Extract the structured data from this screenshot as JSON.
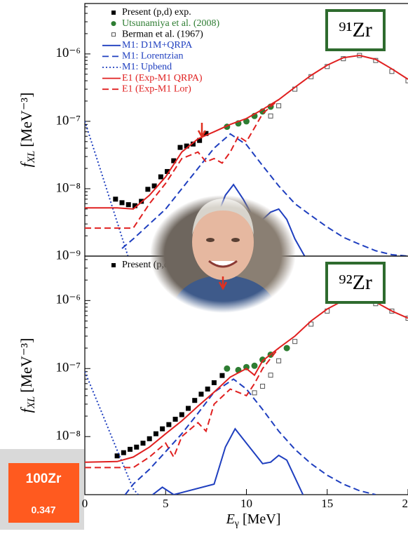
{
  "chart_data": [
    {
      "type": "line",
      "annotation": "⁹¹Zr",
      "legend": "upper left",
      "ylog": true,
      "ylabel": {
        "symbol": "f",
        "subscript": "XL",
        "unit": "[MeV⁻³]"
      },
      "xlim": [
        0,
        20
      ],
      "ylim": [
        1e-09,
        5.6e-06
      ],
      "yticks": [
        {
          "value": 1e-09,
          "label": "10⁻⁹"
        },
        {
          "value": 1e-08,
          "label": "10⁻⁸"
        },
        {
          "value": 1e-07,
          "label": "10⁻⁷"
        },
        {
          "value": 1e-06,
          "label": "10⁻⁶"
        }
      ],
      "series": [
        {
          "name": "Present (p,d) exp.",
          "color": "#000000",
          "marker": "square",
          "x": [
            1.9,
            2.3,
            2.7,
            3.1,
            3.5,
            3.9,
            4.3,
            4.7,
            5.1,
            5.5,
            5.9,
            6.3,
            6.7,
            7.1,
            7.5
          ],
          "values": [
            7e-09,
            6.2e-09,
            5.8e-09,
            5.6e-09,
            6.5e-09,
            9.8e-09,
            1.1e-08,
            1.5e-08,
            1.8e-08,
            2.6e-08,
            4.1e-08,
            4.3e-08,
            4.6e-08,
            5.2e-08,
            6.6e-08
          ]
        },
        {
          "name": "Utsunamiya et al. (2008)",
          "color": "#2e7d32",
          "marker": "circle",
          "x": [
            8.8,
            9.5,
            10.0,
            10.5,
            11.0,
            11.5
          ],
          "values": [
            8.3e-08,
            9.3e-08,
            1e-07,
            1.2e-07,
            1.4e-07,
            1.65e-07
          ]
        },
        {
          "name": "Berman et al. (1967)",
          "color": "#555555",
          "marker": "open-square",
          "x": [
            11.5,
            12,
            13,
            14,
            15,
            16,
            17,
            18,
            19,
            20
          ],
          "values": [
            1.2e-07,
            1.7e-07,
            3e-07,
            4.6e-07,
            6.5e-07,
            8.5e-07,
            9.5e-07,
            8e-07,
            5.5e-07,
            4e-07
          ]
        },
        {
          "name": "M1: D1M+QRPA",
          "color": "#1f3fbf",
          "dash": "solid",
          "x": [
            7,
            8,
            8.7,
            9.2,
            9.8,
            10.5,
            11,
            11.5,
            12,
            12.5,
            13,
            13.6
          ],
          "values": [
            1e-09,
            3e-09,
            8e-09,
            1.15e-08,
            7e-09,
            3.5e-09,
            3.5e-09,
            4.5e-09,
            5e-09,
            3.5e-09,
            1.8e-09,
            1e-09
          ]
        },
        {
          "name": "M1: Lorentzian",
          "color": "#1f3fbf",
          "dash": "dashed",
          "x": [
            2.3,
            3,
            4,
            5,
            6,
            7,
            8,
            9,
            10,
            11,
            12,
            13,
            14,
            15,
            16,
            17,
            18,
            19,
            20
          ],
          "values": [
            1.3e-09,
            1.8e-09,
            3e-09,
            5e-09,
            1e-08,
            2e-08,
            4e-08,
            6.5e-08,
            4.5e-08,
            2.2e-08,
            1.1e-08,
            6e-09,
            4e-09,
            2.7e-09,
            1.9e-09,
            1.5e-09,
            1.2e-09,
            1.05e-09,
            1e-09
          ]
        },
        {
          "name": "M1: Upbend",
          "color": "#1f3fbf",
          "dash": "dotted",
          "x": [
            0,
            1,
            2,
            2.67
          ],
          "values": [
            1e-07,
            1.8e-08,
            3.2e-09,
            1e-09
          ]
        },
        {
          "name": "E1 (Exp-M1 QRPA)",
          "color": "#e02020",
          "dash": "solid",
          "x": [
            0,
            2,
            3,
            4,
            5,
            6,
            7,
            8,
            9,
            10,
            11,
            12,
            13,
            14,
            15,
            16,
            17,
            18,
            19,
            20
          ],
          "values": [
            5.2e-09,
            5.2e-09,
            5e-09,
            8e-09,
            1.5e-08,
            3.5e-08,
            5.5e-08,
            7e-08,
            9e-08,
            1.1e-07,
            1.5e-07,
            2.1e-07,
            3.2e-07,
            4.8e-07,
            6.8e-07,
            8.8e-07,
            9.5e-07,
            8.3e-07,
            6e-07,
            4.2e-07
          ]
        },
        {
          "name": "E1 (Exp-M1 Lor)",
          "color": "#e02020",
          "dash": "dashed",
          "x": [
            0,
            3,
            4,
            5,
            6,
            7,
            7.5,
            8,
            8.5,
            9,
            9.5,
            10,
            10.5,
            11,
            12
          ],
          "values": [
            2.6e-09,
            2.6e-09,
            6e-09,
            1.2e-08,
            2.8e-08,
            3.5e-08,
            2.5e-08,
            2.8e-08,
            2.4e-08,
            3.5e-08,
            6e-08,
            5e-08,
            8e-08,
            1.3e-07,
            2.1e-07
          ]
        }
      ]
    },
    {
      "type": "line",
      "annotation": "⁹²Zr",
      "legend": "upper left",
      "ylog": true,
      "ylabel": {
        "symbol": "f",
        "subscript": "XL",
        "unit": "[MeV⁻³]"
      },
      "xlabel": {
        "symbol": "E",
        "subscript": "γ",
        "unit": "[MeV]"
      },
      "xlim": [
        0,
        20
      ],
      "xticks": [
        0,
        5,
        10,
        15,
        20
      ],
      "ylim": [
        1.4e-09,
        4.5e-06
      ],
      "yticks": [
        {
          "value": 1e-08,
          "label": "10⁻⁸"
        },
        {
          "value": 1e-07,
          "label": "10⁻⁷"
        },
        {
          "value": 1e-06,
          "label": "10⁻⁶"
        }
      ],
      "series": [
        {
          "name": "Present (p,d) exp.",
          "color": "#000000",
          "marker": "square",
          "x": [
            2,
            2.4,
            2.8,
            3.2,
            3.6,
            4,
            4.4,
            4.8,
            5.2,
            5.6,
            6,
            6.4,
            6.8,
            7.2,
            7.6,
            8,
            8.5
          ],
          "values": [
            5.2e-09,
            5.8e-09,
            6.5e-09,
            7e-09,
            8e-09,
            9.3e-09,
            1.1e-08,
            1.3e-08,
            1.5e-08,
            1.8e-08,
            2.1e-08,
            2.6e-08,
            3.4e-08,
            4.2e-08,
            5e-08,
            6.2e-08,
            7.9e-08
          ]
        },
        {
          "color": "#2e7d32",
          "marker": "circle",
          "x": [
            8.8,
            9.5,
            10,
            10.5,
            11,
            11.5,
            12.5
          ],
          "values": [
            1e-07,
            9.5e-08,
            1.05e-07,
            1.1e-07,
            1.35e-07,
            1.6e-07,
            2e-07
          ]
        },
        {
          "color": "#555555",
          "marker": "open-square",
          "x": [
            10.5,
            11,
            11.5,
            12,
            13,
            14,
            15,
            16,
            17,
            18,
            19,
            20
          ],
          "values": [
            4.4e-08,
            5.5e-08,
            8e-08,
            1.3e-07,
            2.5e-07,
            4.5e-07,
            7e-07,
            1e-06,
            1.1e-06,
            9e-07,
            7e-07,
            5.5e-07
          ]
        },
        {
          "color": "#1f3fbf",
          "dash": "solid",
          "x": [
            4.2,
            4.8,
            5.5,
            8,
            8.7,
            9.3,
            10,
            11,
            11.5,
            12,
            12.5,
            13,
            13.5
          ],
          "values": [
            1.4e-09,
            1.8e-09,
            1.4e-09,
            2e-09,
            7e-09,
            1.3e-08,
            8e-09,
            4e-09,
            4.2e-09,
            5.3e-09,
            4.5e-09,
            2.5e-09,
            1.4e-09
          ]
        },
        {
          "color": "#1f3fbf",
          "dash": "dashed",
          "x": [
            2.5,
            3,
            4,
            5,
            6,
            7,
            8,
            9.2,
            10,
            11,
            12,
            13,
            14,
            15,
            16,
            17,
            18
          ],
          "values": [
            1.4e-09,
            2e-09,
            3.3e-09,
            6e-09,
            1.1e-08,
            2.2e-08,
            4.5e-08,
            7e-08,
            5e-08,
            2.5e-08,
            1.2e-08,
            6.5e-09,
            4e-09,
            2.7e-09,
            2e-09,
            1.6e-09,
            1.4e-09
          ]
        },
        {
          "color": "#1f3fbf",
          "dash": "dotted",
          "x": [
            0,
            1,
            2,
            3,
            3.3
          ],
          "values": [
            9e-08,
            2.4e-08,
            6.3e-09,
            1.7e-09,
            1.4e-09
          ]
        },
        {
          "color": "#e02020",
          "dash": "solid",
          "x": [
            0,
            2,
            3,
            4,
            5,
            6,
            7,
            8,
            9,
            10,
            10.5,
            11,
            12,
            13,
            14,
            15,
            16,
            17,
            18,
            19,
            20
          ],
          "values": [
            4.2e-09,
            4.3e-09,
            5e-09,
            7e-09,
            1.1e-08,
            1.7e-08,
            2.8e-08,
            4.5e-08,
            7.5e-08,
            1e-07,
            8e-08,
            1.3e-07,
            2e-07,
            3e-07,
            5e-07,
            7.5e-07,
            1e-06,
            1.1e-06,
            9.5e-07,
            7e-07,
            5.5e-07
          ]
        },
        {
          "color": "#e02020",
          "dash": "dashed",
          "x": [
            0,
            3,
            4,
            5,
            5.5,
            6,
            7,
            7.5,
            8,
            9,
            10,
            10.5,
            11,
            12
          ],
          "values": [
            3.5e-09,
            3.5e-09,
            5e-09,
            8e-09,
            5e-09,
            1e-08,
            1.6e-08,
            1.2e-08,
            3e-08,
            5e-08,
            4e-08,
            6e-08,
            1e-07,
            2e-07
          ]
        }
      ]
    }
  ],
  "badge": {
    "title": "100Zr",
    "value": "0.347"
  }
}
